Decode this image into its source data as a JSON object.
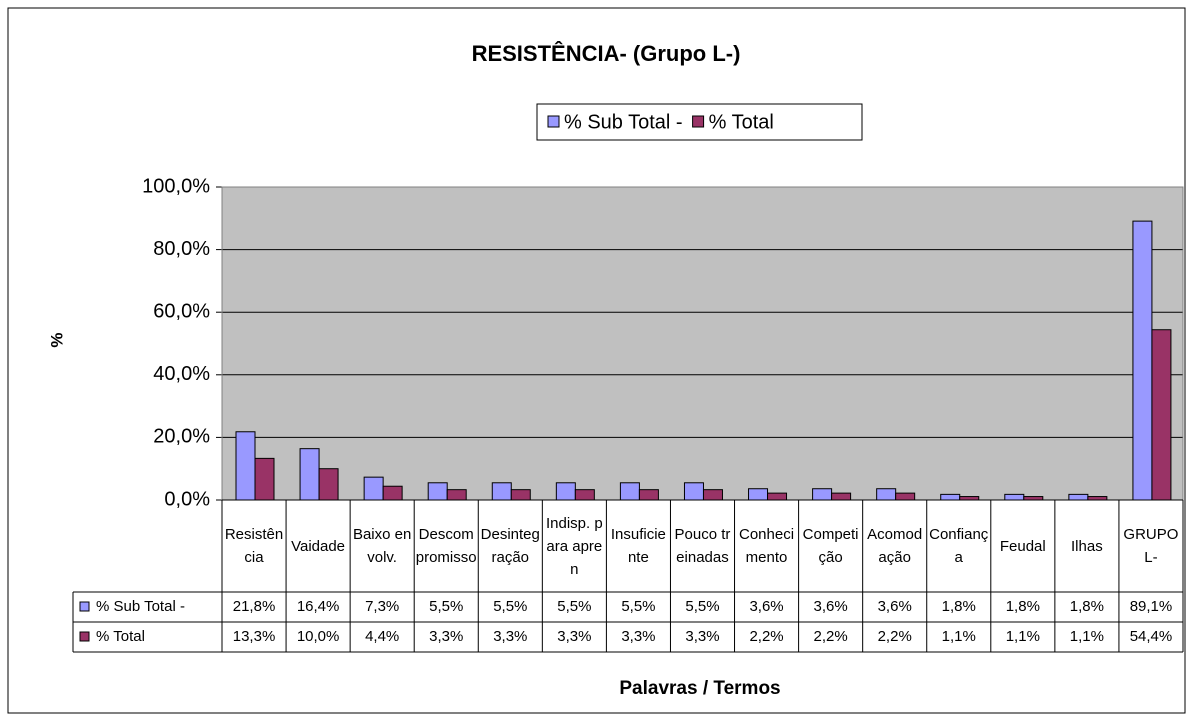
{
  "chart_data": {
    "type": "bar",
    "title": "RESISTÊNCIA- (Grupo L-)",
    "y_label": "%",
    "x_label": "Palavras / Termos",
    "categories": [
      "Resistência",
      "Vaidade",
      "Baixo envolv.",
      "Descompromisso",
      "Desintegração",
      "Indisp. para apren",
      "Insuficiente",
      "Pouco treinadas",
      "Conhecimento",
      "Competição",
      "Acomodação",
      "Confiança",
      "Feudal",
      "Ilhas",
      "GRUPO L-"
    ],
    "series": [
      {
        "name": "% Sub Total -",
        "color": "#9999ff",
        "values": [
          21.8,
          16.4,
          7.3,
          5.5,
          5.5,
          5.5,
          5.5,
          5.5,
          3.6,
          3.6,
          3.6,
          1.8,
          1.8,
          1.8,
          89.1
        ],
        "value_labels": [
          "21,8%",
          "16,4%",
          "7,3%",
          "5,5%",
          "5,5%",
          "5,5%",
          "5,5%",
          "5,5%",
          "3,6%",
          "3,6%",
          "3,6%",
          "1,8%",
          "1,8%",
          "1,8%",
          "89,1%"
        ]
      },
      {
        "name": "% Total",
        "color": "#993366",
        "values": [
          13.3,
          10.0,
          4.4,
          3.3,
          3.3,
          3.3,
          3.3,
          3.3,
          2.2,
          2.2,
          2.2,
          1.1,
          1.1,
          1.1,
          54.4
        ],
        "value_labels": [
          "13,3%",
          "10,0%",
          "4,4%",
          "3,3%",
          "3,3%",
          "3,3%",
          "3,3%",
          "3,3%",
          "2,2%",
          "2,2%",
          "2,2%",
          "1,1%",
          "1,1%",
          "1,1%",
          "54,4%"
        ]
      }
    ],
    "ylim": [
      0,
      100
    ],
    "yticks": [
      {
        "value": 0,
        "label": "0,0%"
      },
      {
        "value": 20,
        "label": "20,0%"
      },
      {
        "value": 40,
        "label": "40,0%"
      },
      {
        "value": 60,
        "label": "60,0%"
      },
      {
        "value": 80,
        "label": "80,0%"
      },
      {
        "value": 100,
        "label": "100,0%"
      }
    ],
    "grid": true,
    "legend": "top"
  }
}
